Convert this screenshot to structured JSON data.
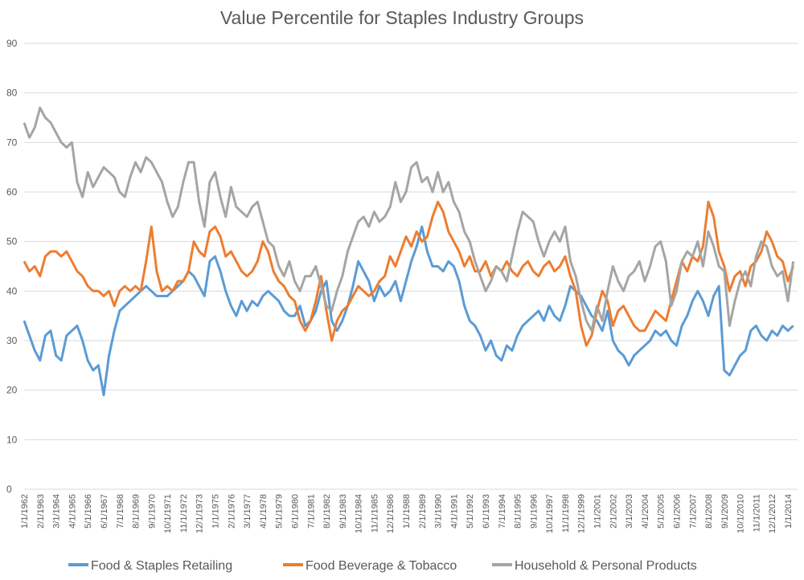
{
  "chart_data": {
    "type": "line",
    "title": "Value Percentile for Staples Industry Groups",
    "categories": [
      "1/1/1962",
      null,
      null,
      "2/1/1963",
      null,
      null,
      "3/1/1964",
      null,
      null,
      "4/1/1965",
      null,
      null,
      "5/1/1966",
      null,
      null,
      "6/1/1967",
      null,
      null,
      "7/1/1968",
      null,
      null,
      "8/1/1969",
      null,
      null,
      "9/1/1970",
      null,
      null,
      "10/1/1971",
      null,
      null,
      "11/1/1972",
      null,
      null,
      "12/1/1973",
      null,
      null,
      "1/1/1975",
      null,
      null,
      "2/1/1976",
      null,
      null,
      "3/1/1977",
      null,
      null,
      "4/1/1978",
      null,
      null,
      "5/1/1979",
      null,
      null,
      "6/1/1980",
      null,
      null,
      "7/1/1981",
      null,
      null,
      "8/1/1982",
      null,
      null,
      "9/1/1983",
      null,
      null,
      "10/1/1984",
      null,
      null,
      "11/1/1985",
      null,
      null,
      "12/1/1986",
      null,
      null,
      "1/1/1988",
      null,
      null,
      "2/1/1989",
      null,
      null,
      "3/1/1990",
      null,
      null,
      "4/1/1991",
      null,
      null,
      "5/1/1992",
      null,
      null,
      "6/1/1993",
      null,
      null,
      "7/1/1994",
      null,
      null,
      "8/1/1995",
      null,
      null,
      "9/1/1996",
      null,
      null,
      "10/1/1997",
      null,
      null,
      "11/1/1998",
      null,
      null,
      "12/1/1999",
      null,
      null,
      "1/1/2001",
      null,
      null,
      "2/1/2002",
      null,
      null,
      "3/1/2003",
      null,
      null,
      "4/1/2004",
      null,
      null,
      "5/1/2005",
      null,
      null,
      "6/1/2006",
      null,
      null,
      "7/1/2007",
      null,
      null,
      "8/1/2008",
      null,
      null,
      "9/1/2009",
      null,
      null,
      "10/1/2010",
      null,
      null,
      "11/1/2011",
      null,
      null,
      "12/1/2012",
      null,
      null,
      "1/1/2014",
      null
    ],
    "series": [
      {
        "name": "Food & Staples Retailing",
        "color": "#5b9bd5",
        "values": [
          34,
          31,
          28,
          26,
          31,
          32,
          27,
          26,
          31,
          32,
          33,
          30,
          26,
          24,
          25,
          19,
          27,
          32,
          36,
          37,
          38,
          39,
          40,
          41,
          40,
          39,
          39,
          39,
          40,
          41,
          42,
          44,
          43,
          41,
          39,
          46,
          47,
          44,
          40,
          37,
          35,
          38,
          36,
          38,
          37,
          39,
          40,
          39,
          38,
          36,
          35,
          35,
          37,
          33,
          34,
          36,
          40,
          42,
          34,
          32,
          34,
          37,
          41,
          46,
          44,
          42,
          38,
          41,
          39,
          40,
          42,
          38,
          42,
          46,
          49,
          53,
          48,
          45,
          45,
          44,
          46,
          45,
          42,
          37,
          34,
          33,
          31,
          28,
          30,
          27,
          26,
          29,
          28,
          31,
          33,
          34,
          35,
          36,
          34,
          37,
          35,
          34,
          37,
          41,
          40,
          39,
          37,
          35,
          34,
          32,
          36,
          30,
          28,
          27,
          25,
          27,
          28,
          29,
          30,
          32,
          31,
          32,
          30,
          29,
          33,
          35,
          38,
          40,
          38,
          35,
          39,
          41,
          24,
          23,
          25,
          27,
          28,
          32,
          33,
          31,
          30,
          32,
          31,
          33,
          32,
          33
        ]
      },
      {
        "name": "Food Beverage & Tobacco",
        "color": "#ed7d31",
        "values": [
          46,
          44,
          45,
          43,
          47,
          48,
          48,
          47,
          48,
          46,
          44,
          43,
          41,
          40,
          40,
          39,
          40,
          37,
          40,
          41,
          40,
          41,
          40,
          46,
          53,
          44,
          40,
          41,
          40,
          42,
          42,
          44,
          50,
          48,
          47,
          52,
          53,
          51,
          47,
          48,
          46,
          44,
          43,
          44,
          46,
          50,
          48,
          44,
          42,
          41,
          39,
          38,
          34,
          32,
          34,
          38,
          43,
          36,
          30,
          34,
          36,
          37,
          39,
          41,
          40,
          39,
          40,
          42,
          43,
          47,
          45,
          48,
          51,
          49,
          52,
          50,
          51,
          55,
          58,
          56,
          52,
          50,
          48,
          45,
          47,
          44,
          44,
          46,
          43,
          45,
          44,
          46,
          44,
          43,
          45,
          46,
          44,
          43,
          45,
          46,
          44,
          45,
          47,
          43,
          40,
          33,
          29,
          31,
          36,
          40,
          38,
          33,
          36,
          37,
          35,
          33,
          32,
          32,
          34,
          36,
          35,
          34,
          38,
          42,
          46,
          44,
          47,
          46,
          49,
          58,
          55,
          48,
          45,
          40,
          43,
          44,
          41,
          45,
          46,
          48,
          52,
          50,
          47,
          46,
          42,
          45
        ]
      },
      {
        "name": "Household & Personal Products",
        "color": "#a5a5a5",
        "values": [
          74,
          71,
          73,
          77,
          75,
          74,
          72,
          70,
          69,
          70,
          62,
          59,
          64,
          61,
          63,
          65,
          64,
          63,
          60,
          59,
          63,
          66,
          64,
          67,
          66,
          64,
          62,
          58,
          55,
          57,
          62,
          66,
          66,
          58,
          53,
          62,
          64,
          59,
          55,
          61,
          57,
          56,
          55,
          57,
          58,
          54,
          50,
          49,
          45,
          43,
          46,
          42,
          40,
          43,
          43,
          45,
          41,
          37,
          36,
          40,
          43,
          48,
          51,
          54,
          55,
          53,
          56,
          54,
          55,
          57,
          62,
          58,
          60,
          65,
          66,
          62,
          63,
          60,
          64,
          60,
          62,
          58,
          56,
          52,
          50,
          46,
          43,
          40,
          42,
          45,
          44,
          42,
          47,
          52,
          56,
          55,
          54,
          50,
          47,
          50,
          52,
          50,
          53,
          46,
          43,
          38,
          34,
          32,
          37,
          34,
          40,
          45,
          42,
          40,
          43,
          44,
          46,
          42,
          45,
          49,
          50,
          46,
          37,
          40,
          46,
          48,
          47,
          50,
          45,
          52,
          49,
          45,
          44,
          33,
          38,
          42,
          44,
          41,
          47,
          50,
          49,
          45,
          43,
          44,
          38,
          46
        ]
      }
    ],
    "ylim": [
      0,
      90
    ],
    "yticks": [
      0,
      10,
      20,
      30,
      40,
      50,
      60,
      70,
      80,
      90
    ],
    "grid": true,
    "legend": "bottom"
  }
}
